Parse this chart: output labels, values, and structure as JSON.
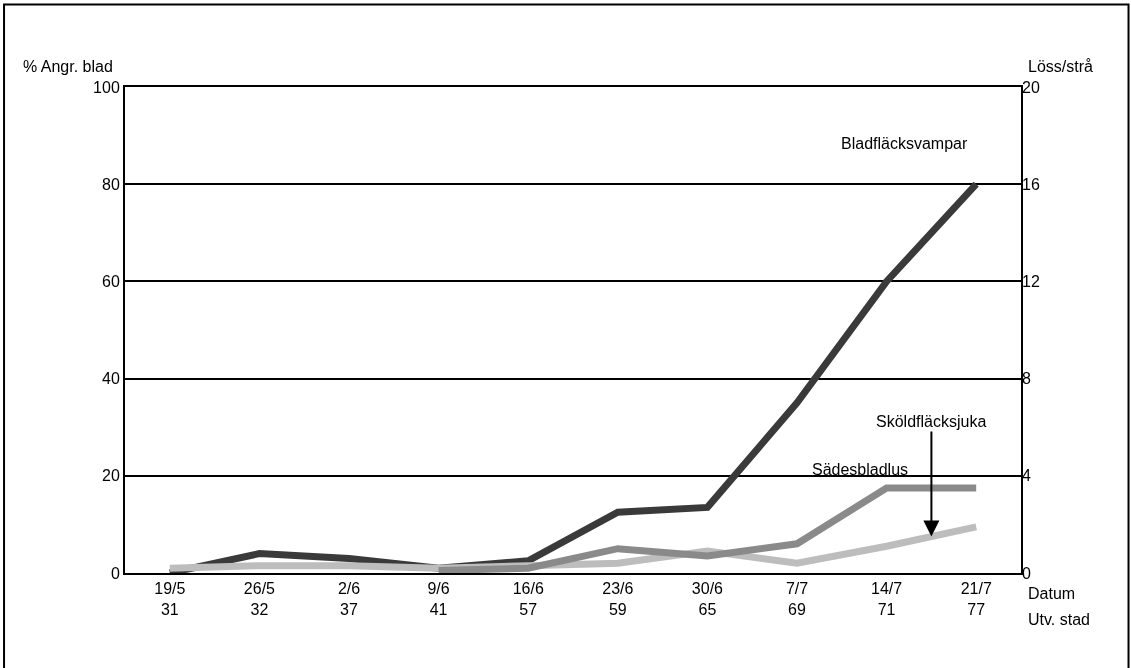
{
  "chart_data": {
    "type": "line",
    "ylabel": "% Angr. blad",
    "y2label": "Löss/strå",
    "categories": [
      "19/5\n31",
      "26/5\n32",
      "2/6\n37",
      "9/6\n41",
      "16/6\n57",
      "23/6\n59",
      "30/6\n65",
      "7/7\n69",
      "14/7\n71",
      "21/7\n77"
    ],
    "series": [
      {
        "name": "Bladfläcksvampar",
        "color": "#3a3a3a",
        "values": [
          0,
          4,
          3,
          1,
          2.5,
          12.5,
          13.5,
          35,
          60,
          80
        ]
      },
      {
        "name": "Sädesbladlus",
        "color": "#8a8a8a",
        "axis": "y2",
        "values": [
          null,
          null,
          null,
          0.1,
          0.2,
          1.0,
          0.7,
          1.2,
          3.5,
          3.5
        ]
      },
      {
        "name": "Sköldfläcksjuka",
        "color": "#bdbdbd",
        "values": [
          1,
          1.5,
          1.5,
          1,
          1.5,
          2,
          4.5,
          2,
          5.5,
          9.5
        ]
      }
    ],
    "ylim": [
      0,
      100
    ],
    "yticks": [
      0,
      20,
      40,
      60,
      80,
      100
    ],
    "y2lim": [
      0,
      20
    ],
    "y2ticks": [
      0,
      4,
      8,
      12,
      16,
      20
    ],
    "grid": "y",
    "legend": false,
    "marker": "none",
    "line_style": "solid",
    "annotations": [
      "Datum",
      "Utv. stad"
    ]
  }
}
